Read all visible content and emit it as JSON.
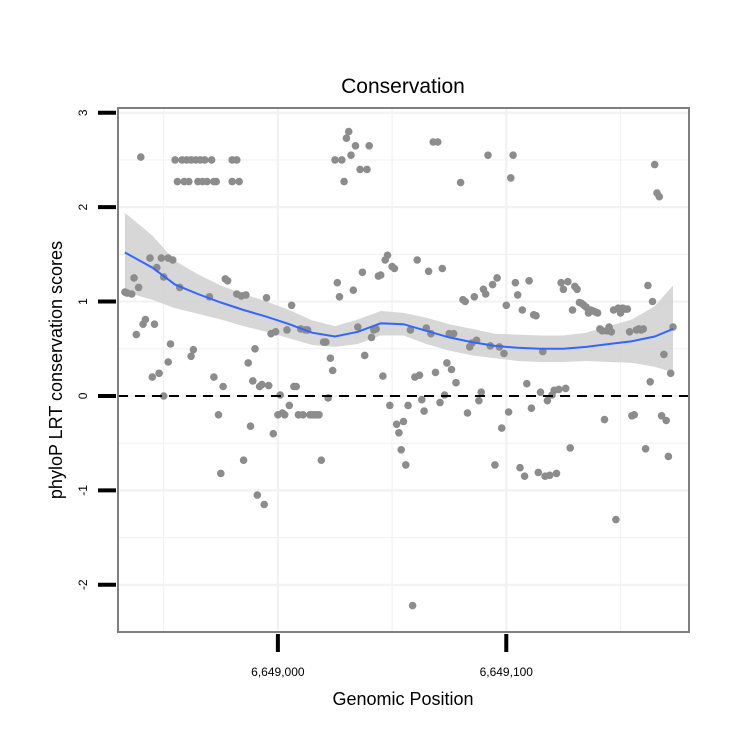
{
  "chart_data": {
    "type": "scatter",
    "title": "Conservation",
    "xlabel": "Genomic Position",
    "ylabel": "phyloP LRT conservation scores",
    "xlim": [
      6648930,
      6649180
    ],
    "ylim": [
      -2.5,
      3.05
    ],
    "x_ticks": [
      {
        "value": 6649000,
        "label": "6,649,000"
      },
      {
        "value": 6649100,
        "label": "6,649,100"
      }
    ],
    "y_ticks": [
      {
        "value": -2,
        "label": "-2"
      },
      {
        "value": -1,
        "label": "-1"
      },
      {
        "value": 0,
        "label": "0"
      },
      {
        "value": 1,
        "label": "1"
      },
      {
        "value": 2,
        "label": "2"
      },
      {
        "value": 3,
        "label": "3"
      }
    ],
    "reference_line": {
      "y": 0,
      "style": "dashed"
    },
    "points": [
      [
        6648933,
        1.1
      ],
      [
        6648934,
        1.09
      ],
      [
        6648936,
        1.08
      ],
      [
        6648937,
        1.25
      ],
      [
        6648938,
        0.65
      ],
      [
        6648939,
        1.15
      ],
      [
        6648940,
        2.53
      ],
      [
        6648941,
        0.76
      ],
      [
        6648942,
        0.81
      ],
      [
        6648944,
        1.46
      ],
      [
        6648945,
        0.2
      ],
      [
        6648946,
        0.76
      ],
      [
        6648947,
        1.36
      ],
      [
        6648948,
        0.24
      ],
      [
        6648949,
        1.46
      ],
      [
        6648950,
        1.26
      ],
      [
        6648950,
        0.0
      ],
      [
        6648952,
        1.46
      ],
      [
        6648952,
        0.36
      ],
      [
        6648953,
        0.55
      ],
      [
        6648954,
        1.44
      ],
      [
        6648955,
        2.5
      ],
      [
        6648956,
        2.27
      ],
      [
        6648957,
        1.15
      ],
      [
        6648958,
        2.5
      ],
      [
        6648959,
        2.27
      ],
      [
        6648960,
        2.5
      ],
      [
        6648961,
        2.27
      ],
      [
        6648962,
        0.42
      ],
      [
        6648962,
        2.5
      ],
      [
        6648963,
        0.49
      ],
      [
        6648964,
        2.5
      ],
      [
        6648965,
        2.27
      ],
      [
        6648966,
        2.5
      ],
      [
        6648967,
        2.27
      ],
      [
        6648968,
        2.5
      ],
      [
        6648969,
        2.27
      ],
      [
        6648970,
        1.05
      ],
      [
        6648971,
        2.5
      ],
      [
        6648972,
        0.2
      ],
      [
        6648972,
        2.27
      ],
      [
        6648973,
        2.27
      ],
      [
        6648974,
        -0.2
      ],
      [
        6648975,
        -0.82
      ],
      [
        6648976,
        0.1
      ],
      [
        6648977,
        1.24
      ],
      [
        6648978,
        1.22
      ],
      [
        6648980,
        2.5
      ],
      [
        6648980,
        2.27
      ],
      [
        6648982,
        2.5
      ],
      [
        6648982,
        1.08
      ],
      [
        6648983,
        2.27
      ],
      [
        6648984,
        1.06
      ],
      [
        6648985,
        -0.68
      ],
      [
        6648986,
        1.07
      ],
      [
        6648987,
        0.35
      ],
      [
        6648988,
        -0.32
      ],
      [
        6648989,
        0.16
      ],
      [
        6648990,
        0.5
      ],
      [
        6648991,
        -1.05
      ],
      [
        6648992,
        0.1
      ],
      [
        6648993,
        0.12
      ],
      [
        6648994,
        -1.15
      ],
      [
        6648995,
        1.04
      ],
      [
        6648996,
        0.11
      ],
      [
        6648997,
        0.66
      ],
      [
        6648998,
        -0.4
      ],
      [
        6648999,
        0.68
      ],
      [
        6649000,
        -0.2
      ],
      [
        6649001,
        0.01
      ],
      [
        6649002,
        -0.18
      ],
      [
        6649003,
        -0.2
      ],
      [
        6649004,
        0.7
      ],
      [
        6649005,
        -0.1
      ],
      [
        6649006,
        0.96
      ],
      [
        6649007,
        0.1
      ],
      [
        6649008,
        0.1
      ],
      [
        6649009,
        -0.2
      ],
      [
        6649010,
        0.71
      ],
      [
        6649011,
        -0.2
      ],
      [
        6649012,
        0.7
      ],
      [
        6649013,
        0.7
      ],
      [
        6649014,
        -0.2
      ],
      [
        6649015,
        -0.2
      ],
      [
        6649016,
        -0.2
      ],
      [
        6649017,
        -0.2
      ],
      [
        6649018,
        -0.2
      ],
      [
        6649019,
        -0.68
      ],
      [
        6649020,
        0.57
      ],
      [
        6649021,
        0.57
      ],
      [
        6649022,
        -0.02
      ],
      [
        6649023,
        0.4
      ],
      [
        6649024,
        0.27
      ],
      [
        6649025,
        2.5
      ],
      [
        6649026,
        1.2
      ],
      [
        6649027,
        1.05
      ],
      [
        6649028,
        2.5
      ],
      [
        6649029,
        2.27
      ],
      [
        6649030,
        2.73
      ],
      [
        6649031,
        2.8
      ],
      [
        6649032,
        2.55
      ],
      [
        6649033,
        1.12
      ],
      [
        6649034,
        2.65
      ],
      [
        6649035,
        0.73
      ],
      [
        6649036,
        2.4
      ],
      [
        6649037,
        1.31
      ],
      [
        6649038,
        0.43
      ],
      [
        6649039,
        2.4
      ],
      [
        6649040,
        2.65
      ],
      [
        6649041,
        0.62
      ],
      [
        6649042,
        0.7
      ],
      [
        6649043,
        0.71
      ],
      [
        6649044,
        1.27
      ],
      [
        6649045,
        1.28
      ],
      [
        6649046,
        0.21
      ],
      [
        6649047,
        1.44
      ],
      [
        6649048,
        1.49
      ],
      [
        6649049,
        -0.1
      ],
      [
        6649050,
        1.37
      ],
      [
        6649051,
        1.35
      ],
      [
        6649052,
        -0.3
      ],
      [
        6649053,
        -0.39
      ],
      [
        6649054,
        -0.57
      ],
      [
        6649055,
        -0.27
      ],
      [
        6649056,
        -0.73
      ],
      [
        6649057,
        -0.1
      ],
      [
        6649058,
        0.7
      ],
      [
        6649059,
        -2.22
      ],
      [
        6649060,
        0.2
      ],
      [
        6649061,
        1.44
      ],
      [
        6649062,
        0.22
      ],
      [
        6649063,
        -0.04
      ],
      [
        6649064,
        -0.16
      ],
      [
        6649065,
        0.72
      ],
      [
        6649066,
        1.32
      ],
      [
        6649067,
        0.66
      ],
      [
        6649068,
        2.69
      ],
      [
        6649069,
        0.25
      ],
      [
        6649070,
        2.69
      ],
      [
        6649071,
        -0.07
      ],
      [
        6649072,
        1.35
      ],
      [
        6649073,
        0.01
      ],
      [
        6649074,
        0.35
      ],
      [
        6649075,
        0.66
      ],
      [
        6649076,
        0.28
      ],
      [
        6649077,
        0.66
      ],
      [
        6649078,
        0.14
      ],
      [
        6649080,
        2.26
      ],
      [
        6649081,
        1.02
      ],
      [
        6649082,
        1.0
      ],
      [
        6649083,
        -0.18
      ],
      [
        6649084,
        0.52
      ],
      [
        6649085,
        0.56
      ],
      [
        6649086,
        1.05
      ],
      [
        6649087,
        0.59
      ],
      [
        6649088,
        -0.05
      ],
      [
        6649089,
        0.04
      ],
      [
        6649090,
        1.13
      ],
      [
        6649091,
        1.08
      ],
      [
        6649092,
        2.55
      ],
      [
        6649093,
        0.53
      ],
      [
        6649094,
        1.18
      ],
      [
        6649095,
        -0.73
      ],
      [
        6649096,
        1.25
      ],
      [
        6649097,
        0.52
      ],
      [
        6649098,
        -0.34
      ],
      [
        6649099,
        0.45
      ],
      [
        6649100,
        0.96
      ],
      [
        6649101,
        -0.17
      ],
      [
        6649102,
        2.31
      ],
      [
        6649103,
        2.55
      ],
      [
        6649104,
        1.2
      ],
      [
        6649105,
        1.07
      ],
      [
        6649106,
        -0.76
      ],
      [
        6649107,
        0.91
      ],
      [
        6649108,
        -0.85
      ],
      [
        6649109,
        0.13
      ],
      [
        6649110,
        1.22
      ],
      [
        6649111,
        -0.13
      ],
      [
        6649112,
        0.86
      ],
      [
        6649113,
        0.85
      ],
      [
        6649114,
        -0.81
      ],
      [
        6649115,
        0.04
      ],
      [
        6649116,
        0.47
      ],
      [
        6649117,
        -0.85
      ],
      [
        6649118,
        -0.05
      ],
      [
        6649119,
        -0.84
      ],
      [
        6649120,
        0.01
      ],
      [
        6649121,
        0.06
      ],
      [
        6649122,
        -0.82
      ],
      [
        6649123,
        0.07
      ],
      [
        6649124,
        1.2
      ],
      [
        6649125,
        1.13
      ],
      [
        6649126,
        0.08
      ],
      [
        6649127,
        1.21
      ],
      [
        6649128,
        -0.55
      ],
      [
        6649129,
        0.91
      ],
      [
        6649130,
        1.16
      ],
      [
        6649131,
        1.13
      ],
      [
        6649132,
        0.99
      ],
      [
        6649133,
        0.98
      ],
      [
        6649134,
        0.96
      ],
      [
        6649135,
        0.94
      ],
      [
        6649136,
        0.88
      ],
      [
        6649137,
        0.91
      ],
      [
        6649138,
        0.9
      ],
      [
        6649139,
        0.89
      ],
      [
        6649140,
        0.88
      ],
      [
        6649141,
        0.71
      ],
      [
        6649142,
        0.69
      ],
      [
        6649143,
        -0.25
      ],
      [
        6649144,
        0.69
      ],
      [
        6649145,
        0.73
      ],
      [
        6649146,
        0.68
      ],
      [
        6649147,
        0.91
      ],
      [
        6649148,
        -1.31
      ],
      [
        6649149,
        0.93
      ],
      [
        6649150,
        0.88
      ],
      [
        6649151,
        0.93
      ],
      [
        6649152,
        0.92
      ],
      [
        6649153,
        0.92
      ],
      [
        6649154,
        0.68
      ],
      [
        6649155,
        -0.21
      ],
      [
        6649156,
        -0.2
      ],
      [
        6649157,
        0.7
      ],
      [
        6649158,
        0.71
      ],
      [
        6649159,
        0.7
      ],
      [
        6649160,
        0.71
      ],
      [
        6649161,
        -0.56
      ],
      [
        6649162,
        1.17
      ],
      [
        6649163,
        0.15
      ],
      [
        6649164,
        1.0
      ],
      [
        6649165,
        2.45
      ],
      [
        6649166,
        2.15
      ],
      [
        6649167,
        2.11
      ],
      [
        6649168,
        -0.21
      ],
      [
        6649169,
        0.44
      ],
      [
        6649170,
        -0.26
      ],
      [
        6649171,
        -0.64
      ],
      [
        6649172,
        0.24
      ],
      [
        6649173,
        0.73
      ]
    ],
    "smooth": {
      "method": "loess",
      "x": [
        6648933,
        6648945,
        6648955,
        6648965,
        6648975,
        6648985,
        6648995,
        6649005,
        6649015,
        6649025,
        6649035,
        6649045,
        6649055,
        6649065,
        6649075,
        6649085,
        6649095,
        6649105,
        6649115,
        6649125,
        6649135,
        6649145,
        6649155,
        6649165,
        6649173
      ],
      "y": [
        1.52,
        1.36,
        1.18,
        1.08,
        0.99,
        0.91,
        0.84,
        0.76,
        0.67,
        0.63,
        0.68,
        0.77,
        0.76,
        0.69,
        0.62,
        0.57,
        0.53,
        0.51,
        0.5,
        0.5,
        0.52,
        0.55,
        0.58,
        0.63,
        0.71
      ],
      "lower": [
        1.1,
        1.02,
        0.93,
        0.87,
        0.81,
        0.74,
        0.68,
        0.61,
        0.54,
        0.52,
        0.55,
        0.64,
        0.64,
        0.55,
        0.48,
        0.43,
        0.4,
        0.37,
        0.36,
        0.36,
        0.37,
        0.36,
        0.35,
        0.31,
        0.25
      ],
      "upper": [
        1.94,
        1.7,
        1.43,
        1.29,
        1.17,
        1.08,
        1.0,
        0.91,
        0.8,
        0.74,
        0.81,
        0.9,
        0.88,
        0.83,
        0.76,
        0.71,
        0.66,
        0.65,
        0.64,
        0.64,
        0.67,
        0.74,
        0.81,
        0.95,
        1.17
      ]
    },
    "colors": {
      "points": "#8c8c8c",
      "line": "#3366ff",
      "ribbon": "#d0d0d0",
      "grid": "#f2f2f2",
      "panel_border": "#7f7f7f",
      "axis": "#000000"
    }
  }
}
